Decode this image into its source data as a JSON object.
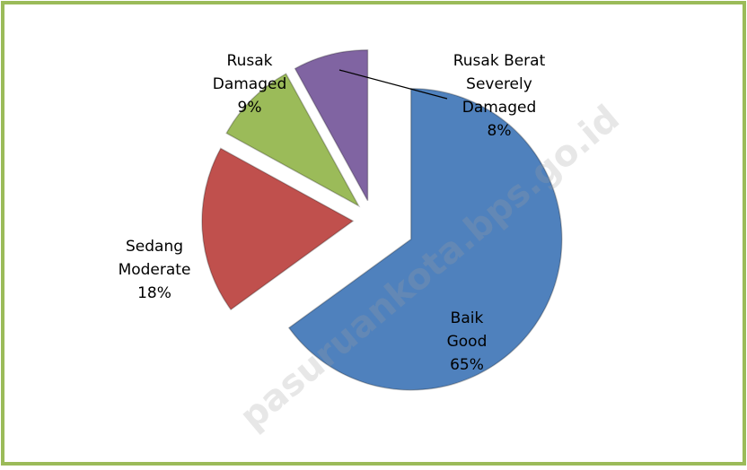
{
  "chart_data": {
    "type": "pie",
    "categories": [
      [
        "Baik",
        "Good"
      ],
      [
        "Sedang",
        "Moderate"
      ],
      [
        "Rusak",
        "Damaged"
      ],
      [
        "Rusak Berat",
        "Severely",
        "Damaged"
      ]
    ],
    "values": [
      65,
      18,
      9,
      8
    ],
    "value_labels": [
      "65%",
      "18%",
      "9%",
      "8%"
    ],
    "colors": [
      "#4f81bd",
      "#c0504d",
      "#9bbb59",
      "#8064a2"
    ],
    "watermark": "pasuruankota.bps.go.id"
  }
}
